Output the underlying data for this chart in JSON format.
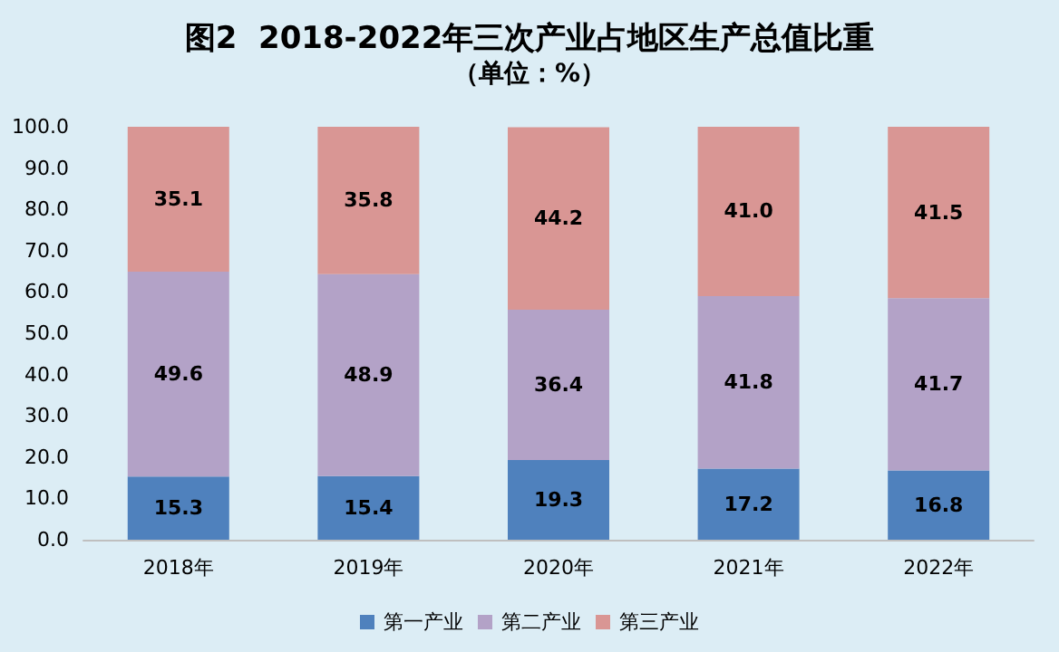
{
  "chart_data": {
    "type": "bar",
    "title": "图2  2018-2022年三次产业占地区生产总值比重",
    "subtitle": "（单位：%）",
    "stacked": true,
    "categories": [
      "2018年",
      "2019年",
      "2020年",
      "2021年",
      "2022年"
    ],
    "series": [
      {
        "name": "第一产业",
        "color": "#4f81bd",
        "values": [
          15.3,
          15.4,
          19.3,
          17.2,
          16.8
        ],
        "value_labels": [
          "15.3",
          "15.4",
          "19.3",
          "17.2",
          "16.8"
        ]
      },
      {
        "name": "第二产业",
        "color": "#b3a2c7",
        "values": [
          49.6,
          48.9,
          36.4,
          41.8,
          41.7
        ],
        "value_labels": [
          "49.6",
          "48.9",
          "36.4",
          "41.8",
          "41.7"
        ]
      },
      {
        "name": "第三产业",
        "color": "#d99694",
        "values": [
          35.1,
          35.8,
          44.2,
          41.0,
          41.5
        ],
        "value_labels": [
          "35.1",
          "35.8",
          "44.2",
          "41.0",
          "41.5"
        ]
      }
    ],
    "ylim": [
      0,
      100
    ],
    "yticks": [
      {
        "value": 0,
        "label": "0.0"
      },
      {
        "value": 10,
        "label": "10.0"
      },
      {
        "value": 20,
        "label": "20.0"
      },
      {
        "value": 30,
        "label": "30.0"
      },
      {
        "value": 40,
        "label": "40.0"
      },
      {
        "value": 50,
        "label": "50.0"
      },
      {
        "value": 60,
        "label": "60.0"
      },
      {
        "value": 70,
        "label": "70.0"
      },
      {
        "value": 80,
        "label": "80.0"
      },
      {
        "value": 90,
        "label": "90.0"
      },
      {
        "value": 100,
        "label": "100.0"
      }
    ],
    "grid": false,
    "legend": "bottom"
  }
}
